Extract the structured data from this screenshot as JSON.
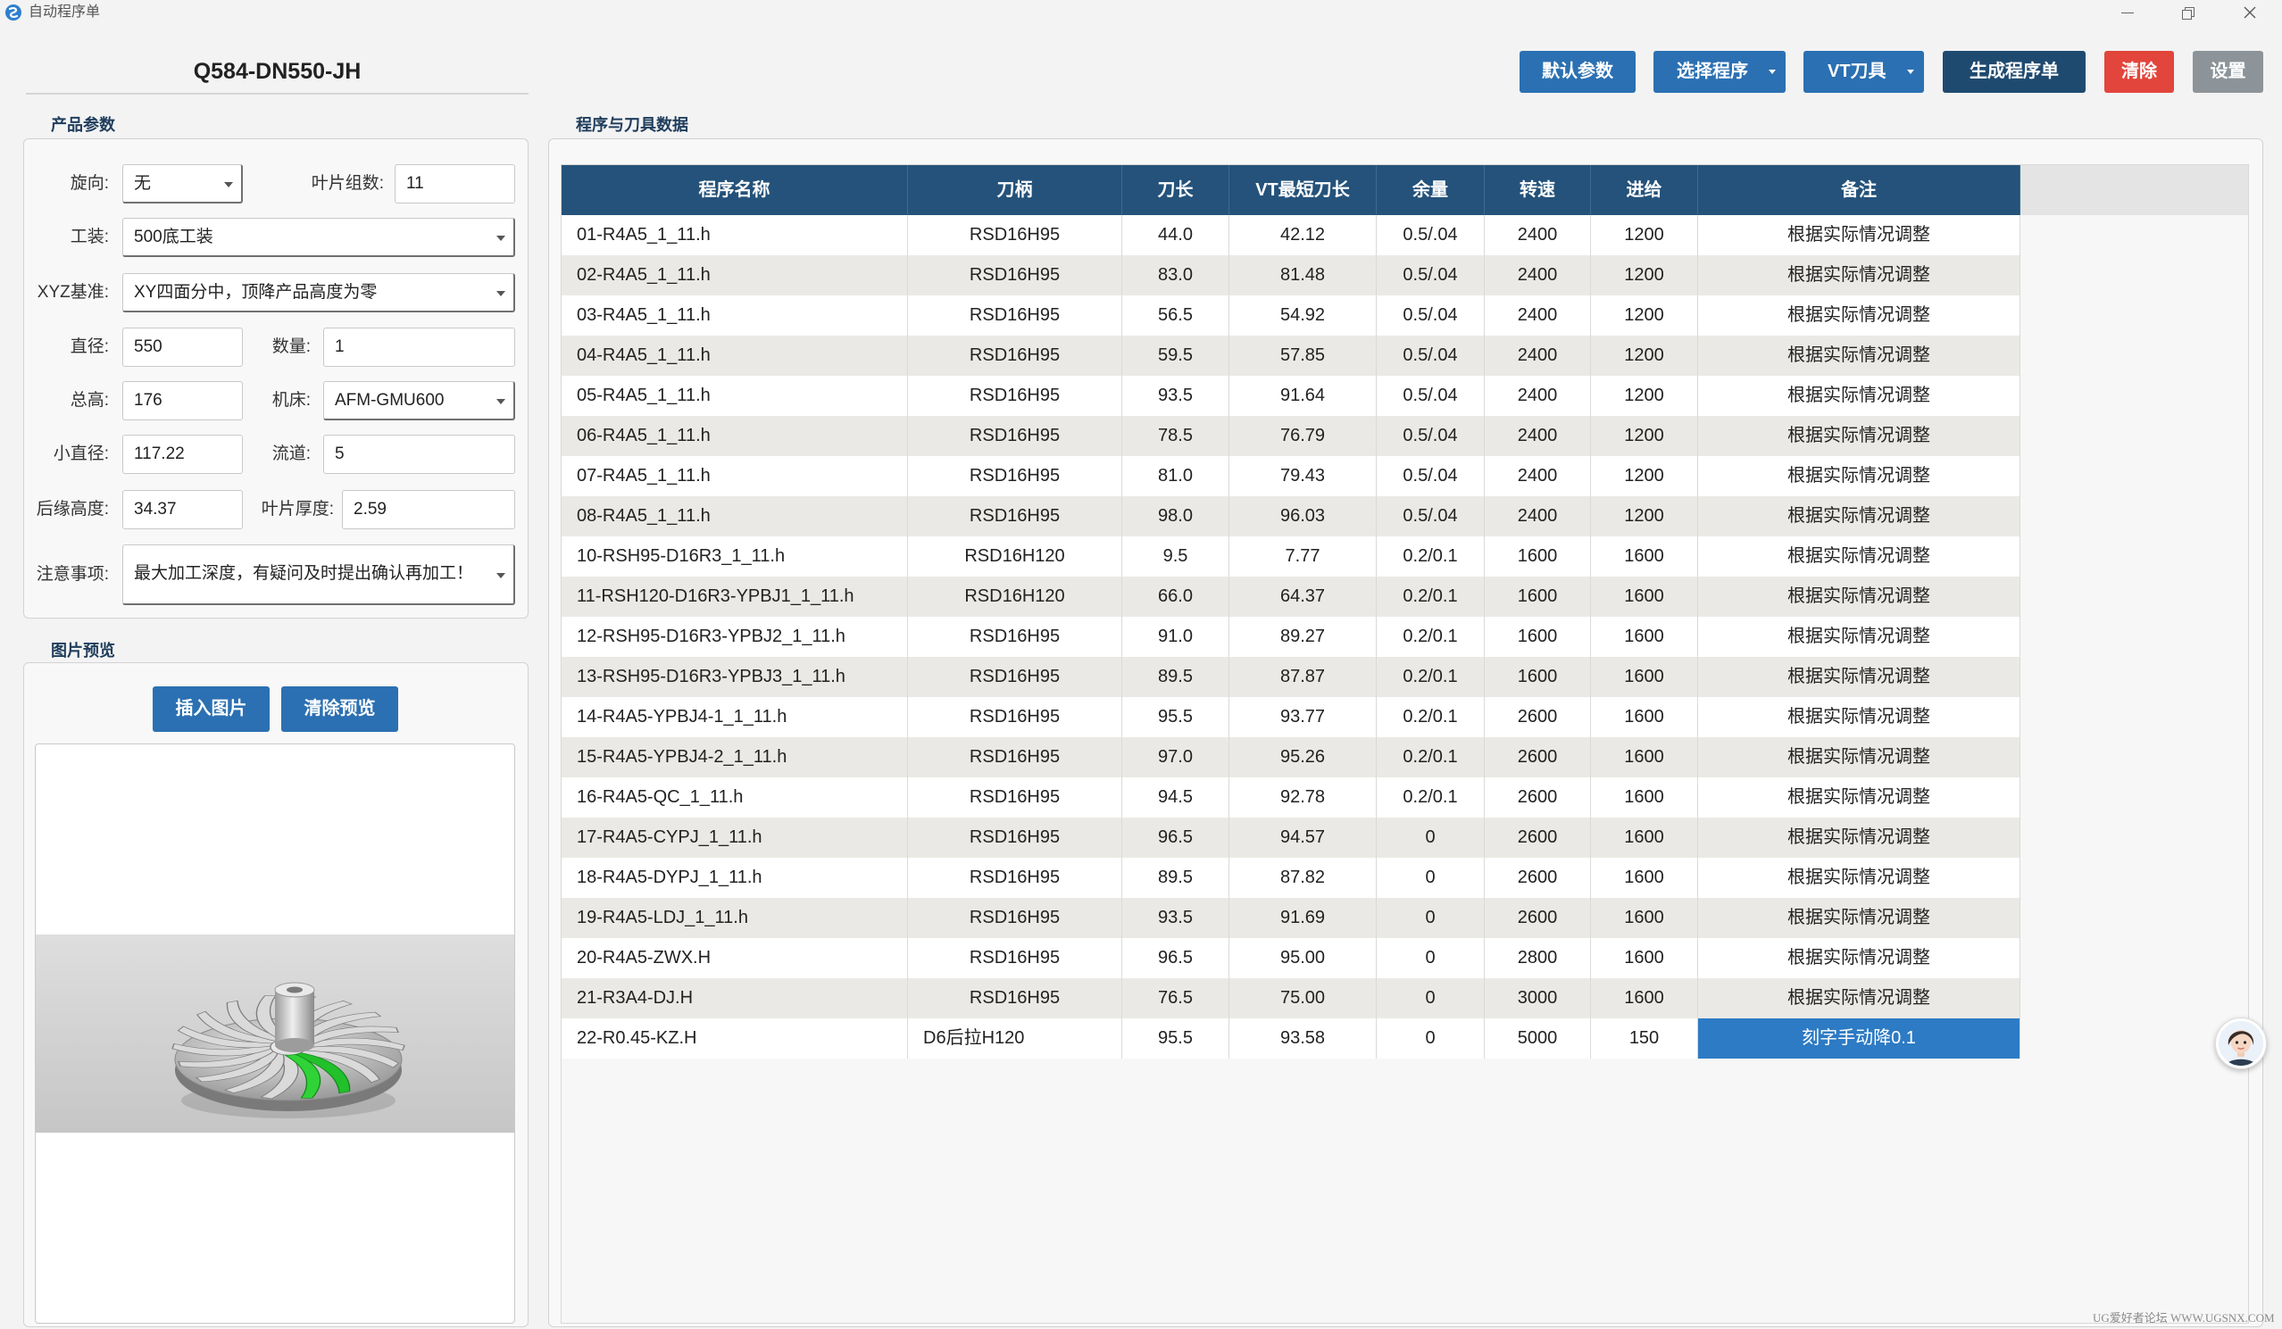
{
  "window": {
    "title": "自动程序单"
  },
  "product": {
    "title": "Q584-DN550-JH"
  },
  "params": {
    "group_title": "产品参数",
    "rotation": {
      "label": "旋向:",
      "value": "无"
    },
    "blade_groups": {
      "label": "叶片组数:",
      "value": "11"
    },
    "fixture": {
      "label": "工装:",
      "value": "500底工装"
    },
    "xyz_datum": {
      "label": "XYZ基准:",
      "value": "XY四面分中，顶降产品高度为零"
    },
    "diameter": {
      "label": "直径:",
      "value": "550"
    },
    "quantity": {
      "label": "数量:",
      "value": "1"
    },
    "total_height": {
      "label": "总高:",
      "value": "176"
    },
    "machine": {
      "label": "机床:",
      "value": "AFM-GMU600"
    },
    "small_diameter": {
      "label": "小直径:",
      "value": "117.22"
    },
    "flow_channels": {
      "label": "流道:",
      "value": "5"
    },
    "trailing_edge_height": {
      "label": "后缘高度:",
      "value": "34.37"
    },
    "blade_thickness": {
      "label": "叶片厚度:",
      "value": "2.59"
    },
    "notes": {
      "label": "注意事项:",
      "value": "最大加工深度，有疑问及时提出确认再加工！"
    }
  },
  "preview": {
    "group_title": "图片预览",
    "insert_button": "插入图片",
    "clear_button": "清除预览"
  },
  "toolbar": {
    "default_params": "默认参数",
    "select_program": "选择程序",
    "vt_tools": "VT刀具",
    "generate": "生成程序单",
    "clear": "清除",
    "settings": "设置"
  },
  "table": {
    "group_title": "程序与刀具数据",
    "columns": [
      "程序名称",
      "刀柄",
      "刀长",
      "VT最短刀长",
      "余量",
      "转速",
      "进给",
      "备注"
    ],
    "rows": [
      [
        "01-R4A5_1_11.h",
        "RSD16H95",
        "44.0",
        "42.12",
        "0.5/.04",
        "2400",
        "1200",
        "根据实际情况调整"
      ],
      [
        "02-R4A5_1_11.h",
        "RSD16H95",
        "83.0",
        "81.48",
        "0.5/.04",
        "2400",
        "1200",
        "根据实际情况调整"
      ],
      [
        "03-R4A5_1_11.h",
        "RSD16H95",
        "56.5",
        "54.92",
        "0.5/.04",
        "2400",
        "1200",
        "根据实际情况调整"
      ],
      [
        "04-R4A5_1_11.h",
        "RSD16H95",
        "59.5",
        "57.85",
        "0.5/.04",
        "2400",
        "1200",
        "根据实际情况调整"
      ],
      [
        "05-R4A5_1_11.h",
        "RSD16H95",
        "93.5",
        "91.64",
        "0.5/.04",
        "2400",
        "1200",
        "根据实际情况调整"
      ],
      [
        "06-R4A5_1_11.h",
        "RSD16H95",
        "78.5",
        "76.79",
        "0.5/.04",
        "2400",
        "1200",
        "根据实际情况调整"
      ],
      [
        "07-R4A5_1_11.h",
        "RSD16H95",
        "81.0",
        "79.43",
        "0.5/.04",
        "2400",
        "1200",
        "根据实际情况调整"
      ],
      [
        "08-R4A5_1_11.h",
        "RSD16H95",
        "98.0",
        "96.03",
        "0.5/.04",
        "2400",
        "1200",
        "根据实际情况调整"
      ],
      [
        "10-RSH95-D16R3_1_11.h",
        "RSD16H120",
        "9.5",
        "7.77",
        "0.2/0.1",
        "1600",
        "1600",
        "根据实际情况调整"
      ],
      [
        "11-RSH120-D16R3-YPBJ1_1_11.h",
        "RSD16H120",
        "66.0",
        "64.37",
        "0.2/0.1",
        "1600",
        "1600",
        "根据实际情况调整"
      ],
      [
        "12-RSH95-D16R3-YPBJ2_1_11.h",
        "RSD16H95",
        "91.0",
        "89.27",
        "0.2/0.1",
        "1600",
        "1600",
        "根据实际情况调整"
      ],
      [
        "13-RSH95-D16R3-YPBJ3_1_11.h",
        "RSD16H95",
        "89.5",
        "87.87",
        "0.2/0.1",
        "1600",
        "1600",
        "根据实际情况调整"
      ],
      [
        "14-R4A5-YPBJ4-1_1_11.h",
        "RSD16H95",
        "95.5",
        "93.77",
        "0.2/0.1",
        "2600",
        "1600",
        "根据实际情况调整"
      ],
      [
        "15-R4A5-YPBJ4-2_1_11.h",
        "RSD16H95",
        "97.0",
        "95.26",
        "0.2/0.1",
        "2600",
        "1600",
        "根据实际情况调整"
      ],
      [
        "16-R4A5-QC_1_11.h",
        "RSD16H95",
        "94.5",
        "92.78",
        "0.2/0.1",
        "2600",
        "1600",
        "根据实际情况调整"
      ],
      [
        "17-R4A5-CYPJ_1_11.h",
        "RSD16H95",
        "96.5",
        "94.57",
        "0",
        "2600",
        "1600",
        "根据实际情况调整"
      ],
      [
        "18-R4A5-DYPJ_1_11.h",
        "RSD16H95",
        "89.5",
        "87.82",
        "0",
        "2600",
        "1600",
        "根据实际情况调整"
      ],
      [
        "19-R4A5-LDJ_1_11.h",
        "RSD16H95",
        "93.5",
        "91.69",
        "0",
        "2600",
        "1600",
        "根据实际情况调整"
      ],
      [
        "20-R4A5-ZWX.H",
        "RSD16H95",
        "96.5",
        "95.00",
        "0",
        "2800",
        "1600",
        "根据实际情况调整"
      ],
      [
        "21-R3A4-DJ.H",
        "RSD16H95",
        "76.5",
        "75.00",
        "0",
        "3000",
        "1600",
        "根据实际情况调整"
      ],
      [
        "22-R0.45-KZ.H",
        "D6后拉H120",
        "95.5",
        "93.58",
        "0",
        "5000",
        "150",
        "刻字手动降0.1"
      ]
    ],
    "selected_cell": {
      "row": 20,
      "column": 7
    }
  },
  "watermark": "UG爱好者论坛 WWW.UGSNX.COM",
  "colors": {
    "primary_button": "#2b70b2",
    "generate_button": "#1f4a70",
    "clear_button": "#e2453c",
    "settings_button": "#8c949a",
    "table_header": "#24527a",
    "selected_cell": "#2d7bc4",
    "alternate_row": "#ebe9e5",
    "group_title": "#1f3d5c",
    "highlight_green": "#22c02a"
  },
  "icons": [
    "app-icon",
    "minimize-icon",
    "maximize-icon",
    "close-icon",
    "chevron-down-icon",
    "assistant-avatar-icon"
  ]
}
